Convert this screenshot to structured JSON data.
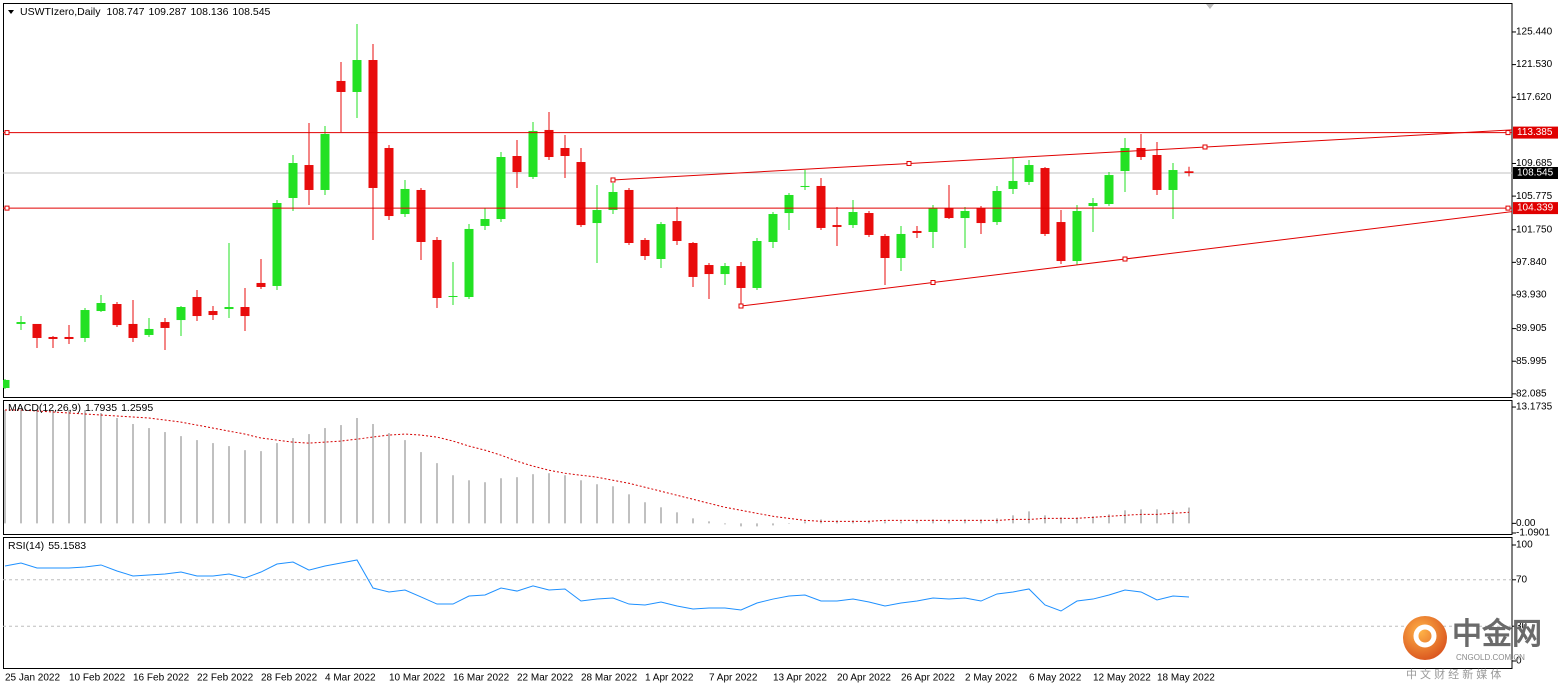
{
  "chart_data": [
    {
      "type": "candlestick",
      "title": "USWTIzero,Daily",
      "up_color": "#23e123",
      "down_color": "#e80c0c",
      "line_color": "#e00000",
      "current_color": "#c0c0c0",
      "categories": [
        "25 Jan 2022",
        null,
        null,
        null,
        "10 Feb 2022",
        null,
        null,
        null,
        "16 Feb 2022",
        null,
        null,
        null,
        "22 Feb 2022",
        null,
        null,
        null,
        "28 Feb 2022",
        null,
        null,
        null,
        "4 Mar 2022",
        null,
        null,
        null,
        "10 Mar 2022",
        null,
        null,
        null,
        "16 Mar 2022",
        null,
        null,
        null,
        "22 Mar 2022",
        null,
        null,
        null,
        "28 Mar 2022",
        null,
        null,
        null,
        "1 Apr 2022",
        null,
        null,
        null,
        "7 Apr 2022",
        null,
        null,
        null,
        "13 Apr 2022",
        null,
        null,
        null,
        "20 Apr 2022",
        null,
        null,
        null,
        "26 Apr 2022",
        null,
        null,
        null,
        "2 May 2022",
        null,
        null,
        null,
        "6 May 2022",
        null,
        null,
        null,
        "12 May 2022",
        null,
        null,
        null,
        "18 May 2022",
        null,
        null
      ],
      "open": [
        82.79,
        90.46,
        90.46,
        88.9,
        88.9,
        88.78,
        92.01,
        92.85,
        90.46,
        89.14,
        90.69,
        90.93,
        93.69,
        92.01,
        92.25,
        92.49,
        95.37,
        95.01,
        105.55,
        109.5,
        106.51,
        119.57,
        118.25,
        122.08,
        111.54,
        103.63,
        106.51,
        100.52,
        93.69,
        93.69,
        102.2,
        103.03,
        110.58,
        108.07,
        113.7,
        111.54,
        109.86,
        102.55,
        104.11,
        106.51,
        100.52,
        98.24,
        102.79,
        100.16,
        97.52,
        96.44,
        97.4,
        94.77,
        100.28,
        103.75,
        106.87,
        106.99,
        102.31,
        102.31,
        103.75,
        101.0,
        98.36,
        101.6,
        101.48,
        104.35,
        103.15,
        104.35,
        102.67,
        106.63,
        107.47,
        109.14,
        102.67,
        98.0,
        104.59,
        104.83,
        108.78,
        111.54,
        110.7,
        106.51,
        108.747
      ],
      "high": [
        83.87,
        91.41,
        90.46,
        89.02,
        90.33,
        92.37,
        93.93,
        93.09,
        93.33,
        91.17,
        91.17,
        92.61,
        94.53,
        92.61,
        100.16,
        94.77,
        98.24,
        105.31,
        110.7,
        114.53,
        114.18,
        121.84,
        126.39,
        124.0,
        111.9,
        107.71,
        106.75,
        100.88,
        97.88,
        102.43,
        104.35,
        111.06,
        112.5,
        114.65,
        115.85,
        113.1,
        111.54,
        107.11,
        107.35,
        106.75,
        100.76,
        102.67,
        104.47,
        100.28,
        97.76,
        97.76,
        97.88,
        100.76,
        103.87,
        106.15,
        108.9,
        107.95,
        104.47,
        105.31,
        103.99,
        101.24,
        102.2,
        102.2,
        104.71,
        107.11,
        104.47,
        104.59,
        106.99,
        110.34,
        110.1,
        109.26,
        104.11,
        104.71,
        105.55,
        108.66,
        112.74,
        113.22,
        112.26,
        109.74,
        109.287
      ],
      "low": [
        82.67,
        89.74,
        87.58,
        87.58,
        88.06,
        88.3,
        91.89,
        90.1,
        88.3,
        88.9,
        87.34,
        89.02,
        90.81,
        90.93,
        91.17,
        89.62,
        94.65,
        94.53,
        103.99,
        104.71,
        105.91,
        113.46,
        115.13,
        100.52,
        102.91,
        103.27,
        98.12,
        92.37,
        92.73,
        93.45,
        101.72,
        102.67,
        106.75,
        107.83,
        110.1,
        107.95,
        102.08,
        97.76,
        103.63,
        99.92,
        98.12,
        97.16,
        99.92,
        94.89,
        93.45,
        95.13,
        92.73,
        94.53,
        99.56,
        101.72,
        106.51,
        101.72,
        99.8,
        101.96,
        100.88,
        95.13,
        96.8,
        100.76,
        99.56,
        103.03,
        99.56,
        101.24,
        102.31,
        106.03,
        107.11,
        101.0,
        97.64,
        97.52,
        101.48,
        104.59,
        106.27,
        110.1,
        105.91,
        103.03,
        108.136
      ],
      "close": [
        83.75,
        90.69,
        88.78,
        88.66,
        88.66,
        92.13,
        92.97,
        90.33,
        88.78,
        89.86,
        89.98,
        92.49,
        91.41,
        91.53,
        92.49,
        91.41,
        94.89,
        104.95,
        109.74,
        106.51,
        113.22,
        118.25,
        122.08,
        106.75,
        103.39,
        106.63,
        100.28,
        93.57,
        93.81,
        101.84,
        103.03,
        110.46,
        108.66,
        113.58,
        110.46,
        110.58,
        102.31,
        104.11,
        106.27,
        100.16,
        98.6,
        102.43,
        100.4,
        96.09,
        96.44,
        97.4,
        94.77,
        100.4,
        103.63,
        105.91,
        106.99,
        101.96,
        102.08,
        103.87,
        101.12,
        98.36,
        101.24,
        101.36,
        104.35,
        103.15,
        103.99,
        102.55,
        106.39,
        107.59,
        109.5,
        101.24,
        98.0,
        103.99,
        104.95,
        108.3,
        111.54,
        110.46,
        106.51,
        108.9,
        108.545
      ],
      "hlines": [
        113.385,
        104.339
      ],
      "trendlines": [
        {
          "x": [
            38,
            75
          ],
          "y": [
            107.71,
            111.66
          ]
        },
        {
          "x": [
            46,
            70
          ],
          "y": [
            92.61,
            98.24
          ]
        }
      ],
      "ylim": [
        81.71,
        128.79
      ],
      "yticks": [
        {
          "value": 125.44,
          "label": "125.440"
        },
        {
          "value": 121.53,
          "label": "121.530"
        },
        {
          "value": 117.62,
          "label": "117.620"
        },
        109.685,
        105.775,
        {
          "value": 101.75,
          "label": "101.750"
        },
        {
          "value": 97.84,
          "label": "97.840"
        },
        {
          "value": 93.93,
          "label": "93.930"
        },
        89.905,
        85.995,
        82.085
      ],
      "grid": false
    },
    {
      "type": "macd",
      "title": "MACD(12,26,9)",
      "color": "#c0c0c0",
      "signal_color": "#d40000",
      "histogram": [
        12.84,
        12.84,
        12.84,
        12.84,
        12.84,
        12.84,
        12.5,
        11.93,
        11.25,
        10.79,
        10.34,
        9.88,
        9.43,
        9.09,
        8.75,
        8.29,
        8.18,
        9.09,
        9.66,
        10.11,
        10.79,
        11.13,
        11.93,
        11.25,
        10.22,
        9.43,
        8.07,
        6.82,
        5.45,
        4.88,
        4.66,
        5.11,
        5.23,
        5.57,
        5.68,
        5.45,
        4.88,
        4.43,
        4.2,
        3.29,
        2.39,
        1.82,
        1.25,
        0.57,
        0.23,
        -0.11,
        -0.34,
        -0.34,
        -0.23,
        0,
        0.23,
        0.45,
        0.34,
        0.34,
        0.34,
        0.23,
        0.23,
        0.34,
        0.45,
        0.34,
        0.45,
        0.45,
        0.57,
        0.91,
        1.36,
        0.91,
        0.68,
        0.68,
        0.8,
        1.02,
        1.48,
        1.59,
        1.59,
        1.48,
        1.7935
      ],
      "signal": [
        12.84,
        12.84,
        12.72,
        12.61,
        12.5,
        12.38,
        12.27,
        12.16,
        12.04,
        11.93,
        11.7,
        11.47,
        11.13,
        10.79,
        10.45,
        10.11,
        9.66,
        9.43,
        9.2,
        9.09,
        9.2,
        9.32,
        9.54,
        9.77,
        10.0,
        10.11,
        10.0,
        9.77,
        9.32,
        8.75,
        8.29,
        7.72,
        7.04,
        6.48,
        6.02,
        5.68,
        5.45,
        5.23,
        4.88,
        4.54,
        4.09,
        3.64,
        3.18,
        2.73,
        2.27,
        1.82,
        1.48,
        1.14,
        0.8,
        0.57,
        0.34,
        0.23,
        0.23,
        0.23,
        0.23,
        0.34,
        0.34,
        0.34,
        0.34,
        0.34,
        0.34,
        0.34,
        0.34,
        0.45,
        0.45,
        0.57,
        0.57,
        0.57,
        0.68,
        0.8,
        0.91,
        1.02,
        1.02,
        1.14,
        1.2595
      ],
      "ylim": [
        -1.0901,
        13.97
      ],
      "yticks": [
        13.1735,
        {
          "value": 0,
          "label": "0.00"
        },
        -1.0901
      ],
      "grid": false
    },
    {
      "type": "line",
      "title": "RSI(14)",
      "color": "#1e90ff",
      "values": [
        81.9,
        84.5,
        80.2,
        80.2,
        80.2,
        81.0,
        82.8,
        77.6,
        73.3,
        74.1,
        75.0,
        76.7,
        73.3,
        73.3,
        75.0,
        71.6,
        76.7,
        83.6,
        85.3,
        78.4,
        81.9,
        84.5,
        87.1,
        62.9,
        59.5,
        61.2,
        55.2,
        49.1,
        49.1,
        56.0,
        56.9,
        62.9,
        60.3,
        64.7,
        61.2,
        62.1,
        51.7,
        53.4,
        54.3,
        49.1,
        48.3,
        50.9,
        47.4,
        44.8,
        45.7,
        45.7,
        44.0,
        50.0,
        53.4,
        56.0,
        56.9,
        51.7,
        51.7,
        53.4,
        50.9,
        47.4,
        50.0,
        51.7,
        54.3,
        53.4,
        54.3,
        51.7,
        57.8,
        59.5,
        62.1,
        48.3,
        43.1,
        51.7,
        53.4,
        56.9,
        61.2,
        59.5,
        52.6,
        56.0,
        55.1583
      ],
      "ylim": [
        0,
        100
      ],
      "yticks": [
        100,
        70,
        30,
        0
      ],
      "grid": true
    }
  ],
  "watermark": {
    "brand": "中金网",
    "domain": "CNGOLD.COM.CN",
    "tagline": "中 文 财 经 新 媒 体"
  }
}
